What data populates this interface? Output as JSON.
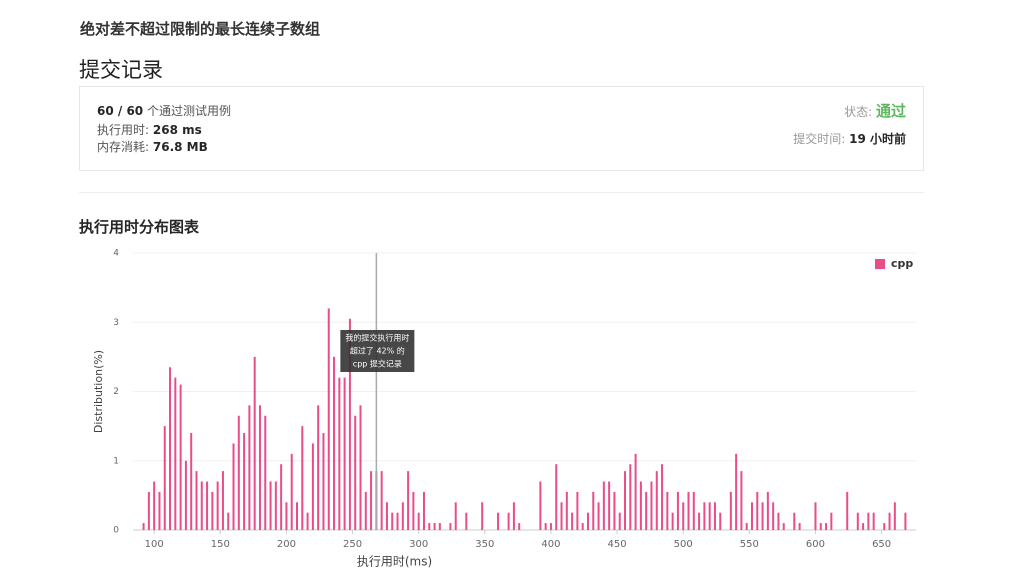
{
  "header": {
    "title": "绝对差不超过限制的最长连续子数组",
    "subtitle": "提交记录"
  },
  "summary": {
    "passed": "60 / 60",
    "passed_text": "个通过测试用例",
    "runtime_label": "执行用时:",
    "runtime": "268 ms",
    "memory_label": "内存消耗:",
    "memory": "76.8 MB",
    "status_label": "状态:",
    "status": "通过",
    "time_label": "提交时间:",
    "time": "19 小时前"
  },
  "chart_heading": "执行用时分布图表",
  "chart_data": {
    "type": "bar",
    "xlabel": "执行用时(ms)",
    "ylabel": "Distribution(%)",
    "x": [
      92,
      96,
      100,
      104,
      108,
      112,
      116,
      120,
      124,
      128,
      132,
      136,
      140,
      144,
      148,
      152,
      156,
      160,
      164,
      168,
      172,
      176,
      180,
      184,
      188,
      192,
      196,
      200,
      204,
      208,
      212,
      216,
      220,
      224,
      228,
      232,
      236,
      240,
      244,
      248,
      252,
      256,
      260,
      264,
      268,
      272,
      276,
      280,
      284,
      288,
      292,
      296,
      300,
      304,
      308,
      312,
      316,
      324,
      328,
      336,
      348,
      360,
      368,
      372,
      376,
      392,
      396,
      400,
      404,
      408,
      412,
      416,
      420,
      424,
      428,
      432,
      436,
      440,
      444,
      448,
      452,
      456,
      460,
      464,
      468,
      472,
      476,
      480,
      484,
      488,
      492,
      496,
      500,
      504,
      508,
      512,
      516,
      520,
      524,
      528,
      536,
      540,
      544,
      548,
      552,
      556,
      560,
      564,
      568,
      572,
      576,
      584,
      588,
      600,
      604,
      608,
      612,
      624,
      632,
      636,
      640,
      644,
      652,
      656,
      660,
      668
    ],
    "series": [
      {
        "name": "cpp",
        "color": "#ea4c89",
        "values": [
          0.1,
          0.55,
          0.7,
          0.55,
          1.5,
          2.35,
          2.2,
          2.1,
          1.0,
          1.4,
          0.85,
          0.7,
          0.7,
          0.55,
          0.7,
          0.85,
          0.25,
          1.25,
          1.65,
          1.4,
          1.8,
          2.5,
          1.8,
          1.65,
          0.7,
          0.7,
          0.95,
          0.4,
          1.1,
          0.4,
          1.5,
          0.25,
          1.25,
          1.8,
          1.4,
          3.2,
          2.5,
          2.2,
          2.2,
          3.05,
          1.65,
          1.8,
          0.55,
          0.85,
          0.85,
          0.85,
          0.4,
          0.25,
          0.25,
          0.4,
          0.85,
          0.55,
          0.25,
          0.55,
          0.1,
          0.1,
          0.1,
          0.1,
          0.4,
          0.25,
          0.4,
          0.25,
          0.25,
          0.4,
          0.1,
          0.7,
          0.1,
          0.1,
          0.95,
          0.4,
          0.55,
          0.25,
          0.55,
          0.1,
          0.25,
          0.55,
          0.4,
          0.7,
          0.7,
          0.55,
          0.25,
          0.85,
          0.95,
          1.1,
          0.7,
          0.55,
          0.7,
          0.85,
          0.95,
          0.55,
          0.25,
          0.55,
          0.4,
          0.55,
          0.55,
          0.25,
          0.4,
          0.4,
          0.4,
          0.25,
          0.55,
          1.1,
          0.85,
          0.1,
          0.4,
          0.55,
          0.4,
          0.55,
          0.4,
          0.25,
          0.1,
          0.25,
          0.1,
          0.4,
          0.1,
          0.1,
          0.25,
          0.55,
          0.25,
          0.1,
          0.25,
          0.25,
          0.1,
          0.25,
          0.4,
          0.25
        ]
      }
    ],
    "xlim": [
      84,
      676
    ],
    "xticks": [
      100,
      150,
      200,
      250,
      300,
      350,
      400,
      450,
      500,
      550,
      600,
      650
    ],
    "ylim": [
      0,
      4
    ],
    "yticks": [
      0,
      1,
      2,
      3,
      4
    ],
    "grid": true,
    "legend": "top-right",
    "marker": 268,
    "annotation": [
      "我的提交执行用时",
      "超过了 42% 的",
      "cpp 提交记录"
    ]
  }
}
